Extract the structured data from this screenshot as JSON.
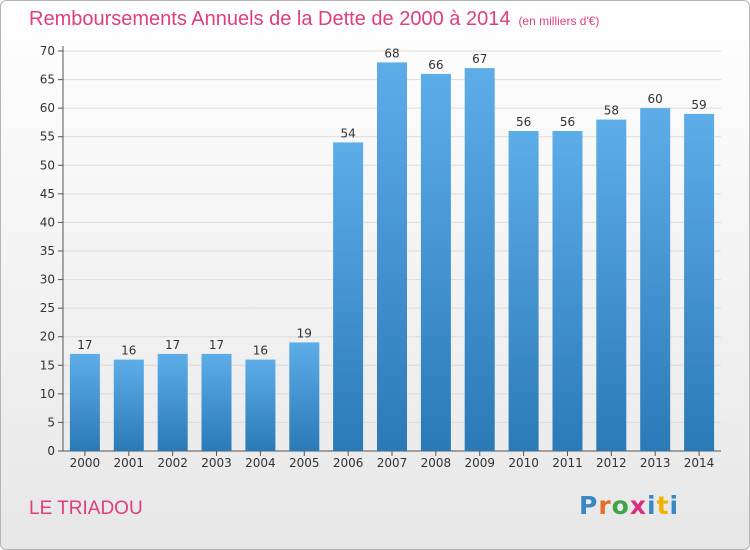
{
  "header": {
    "title": "Remboursements Annuels de la Dette de 2000 à 2014",
    "unit": "(en milliers d'€)"
  },
  "footer": {
    "commune": "LE TRIADOU",
    "logo_letters": [
      "P",
      "r",
      "o",
      "x",
      "i",
      "t",
      "i"
    ]
  },
  "colors": {
    "title": "#e03d7e",
    "bar_top": "#5dade9",
    "bar_bottom": "#2b7ab8",
    "logo": [
      "#3a87c8",
      "#e46f25",
      "#3fa34b",
      "#d92f7e",
      "#3a87c8",
      "#f0b400",
      "#3a87c8"
    ]
  },
  "chart_data": {
    "type": "bar",
    "categories": [
      "2000",
      "2001",
      "2002",
      "2003",
      "2004",
      "2005",
      "2006",
      "2007",
      "2008",
      "2009",
      "2010",
      "2011",
      "2012",
      "2013",
      "2014"
    ],
    "values": [
      17,
      16,
      17,
      17,
      16,
      19,
      54,
      68,
      66,
      67,
      56,
      56,
      58,
      60,
      59
    ],
    "ylim": [
      0,
      70
    ],
    "yticks": [
      0,
      5,
      10,
      15,
      20,
      25,
      30,
      35,
      40,
      45,
      50,
      55,
      60,
      65,
      70
    ],
    "grid": true,
    "legend": "none"
  }
}
